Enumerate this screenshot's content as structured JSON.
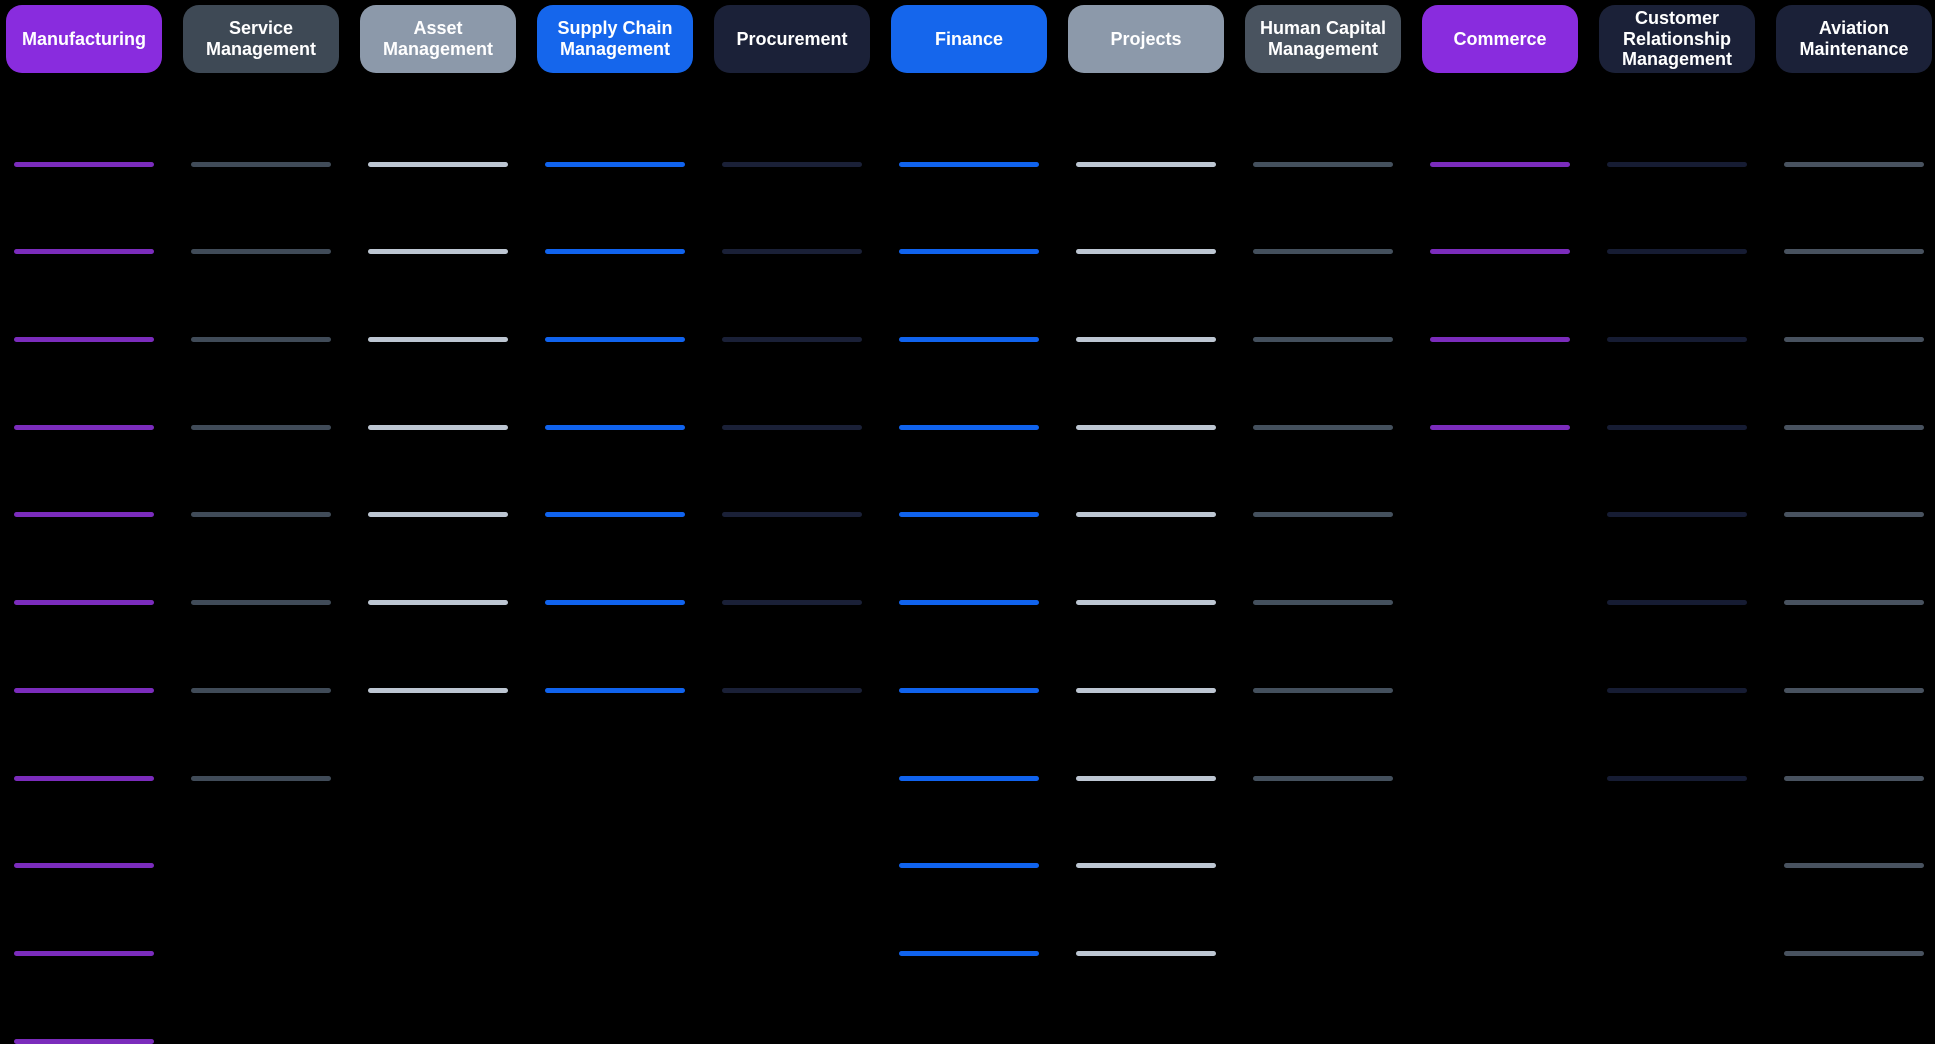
{
  "page": {
    "background": "#000000"
  },
  "columns": [
    {
      "id": "manufacturing",
      "label": "Manufacturing",
      "pill_color": "#892CDE",
      "line_color": "#7B2CBC",
      "item_count": 11
    },
    {
      "id": "service-management",
      "label": "Service Management",
      "pill_color": "#3E4955",
      "line_color": "#404B58",
      "item_count": 8
    },
    {
      "id": "asset-management",
      "label": "Asset Management",
      "pill_color": "#8C99AA",
      "line_color": "#BDC6D2",
      "item_count": 7
    },
    {
      "id": "supply-chain-management",
      "label": "Supply Chain Management",
      "pill_color": "#1566EC",
      "line_color": "#1063EE",
      "item_count": 7
    },
    {
      "id": "procurement",
      "label": "Procurement",
      "pill_color": "#1B2138",
      "line_color": "#1A2037",
      "item_count": 7
    },
    {
      "id": "finance",
      "label": "Finance",
      "pill_color": "#1566EC",
      "line_color": "#1063EE",
      "item_count": 10
    },
    {
      "id": "projects",
      "label": "Projects",
      "pill_color": "#8C99AA",
      "line_color": "#BDC6D2",
      "item_count": 10
    },
    {
      "id": "human-capital-management",
      "label": "Human Capital Management",
      "pill_color": "#49535F",
      "line_color": "#44505D",
      "item_count": 8
    },
    {
      "id": "commerce",
      "label": "Commerce",
      "pill_color": "#892CDE",
      "line_color": "#7B2CBC",
      "item_count": 4
    },
    {
      "id": "customer-relationship-management",
      "label": "Customer Relationship Management",
      "pill_color": "#1B2138",
      "line_color": "#161C33",
      "item_count": 8
    },
    {
      "id": "aviation-maintenance",
      "label": "Aviation Maintenance",
      "pill_color": "#1B2138",
      "line_color": "#48525F",
      "item_count": 10
    }
  ]
}
